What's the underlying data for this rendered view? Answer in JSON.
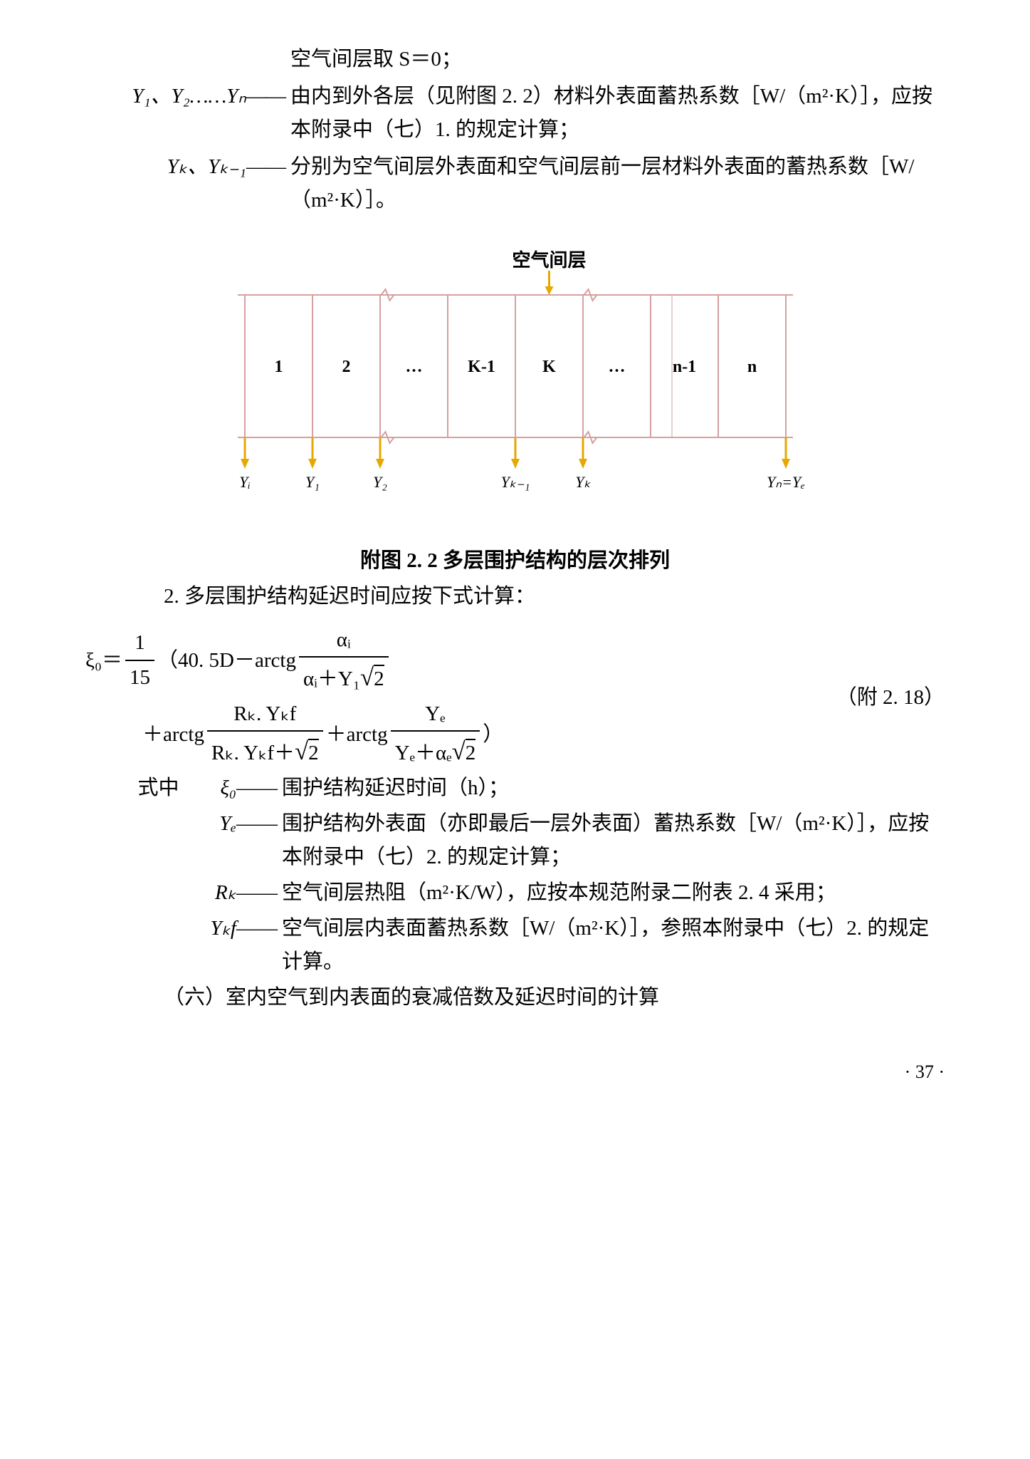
{
  "line1": "空气间层取 S＝0；",
  "defs1": [
    {
      "term": "Y₁、Y₂……Yₙ",
      "body": "由内到外各层（见附图 2. 2）材料外表面蓄热系数［W/（m²·K）］，应按本附录中（七）1. 的规定计算；"
    },
    {
      "term": "Yₖ、Yₖ₋₁",
      "body": "分别为空气间层外表面和空气间层前一层材料外表面的蓄热系数［W/（m²·K）］。"
    }
  ],
  "diagram": {
    "title_top": "空气间层",
    "cells": [
      "1",
      "2",
      "…",
      "K-1",
      "K",
      "…",
      "n-1",
      "n"
    ],
    "bottom_labels": [
      "Yᵢ",
      "Y₁",
      "Y₂",
      "Yₖ₋₁",
      "Yₖ",
      "Yₙ=Yₑ"
    ],
    "line_color": "#d6a0a0",
    "arrow_color": "#e6a800",
    "caption": "附图 2. 2  多层围护结构的层次排列"
  },
  "section2_line": "2. 多层围护结构延迟时间应按下式计算：",
  "formula": {
    "lead": "ξ₀＝",
    "frac1_num": "1",
    "frac1_den": "15",
    "open": "（40. 5D－arctg",
    "frac2_num": "αᵢ",
    "frac2_den_a": "αᵢ＋Y₁",
    "sqrt2": "2",
    "plus_arctg1": "＋arctg",
    "frac3_num": "Rₖ. Yₖf",
    "frac3_den_a": "Rₖ. Yₖf＋",
    "plus_arctg2": "＋arctg",
    "frac4_num": "Yₑ",
    "frac4_den_a": "Yₑ＋αₑ",
    "close": "）",
    "ref": "（附 2. 18）"
  },
  "defs2_lead": "式中",
  "defs2": [
    {
      "term": "ξ₀",
      "body": "围护结构延迟时间（h）；"
    },
    {
      "term": "Yₑ",
      "body": "围护结构外表面（亦即最后一层外表面）蓄热系数［W/（m²·K）］，应按本附录中（七）2. 的规定计算；"
    },
    {
      "term": "Rₖ",
      "body": "空气间层热阻（m²·K/W），应按本规范附录二附表 2. 4 采用；"
    },
    {
      "term": "Yₖf",
      "body": "空气间层内表面蓄热系数［W/（m²·K）］，参照本附录中（七）2. 的规定计算。"
    }
  ],
  "section6": "（六）室内空气到内表面的衰减倍数及延迟时间的计算",
  "page_num": "· 37 ·"
}
